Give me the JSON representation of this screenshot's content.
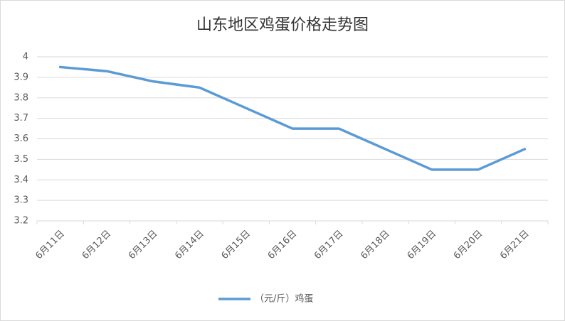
{
  "chart_data": {
    "type": "line",
    "title": "山东地区鸡蛋价格走势图",
    "categories": [
      "6月11日",
      "6月12日",
      "6月13日",
      "6月14日",
      "6月15日",
      "6月16日",
      "6月17日",
      "6月18日",
      "6月19日",
      "6月20日",
      "6月21日"
    ],
    "series": [
      {
        "name": "（元/斤）鸡蛋",
        "color": "#5b9bd5",
        "values": [
          3.95,
          3.93,
          3.88,
          3.85,
          3.75,
          3.65,
          3.65,
          3.55,
          3.45,
          3.45,
          3.55
        ]
      }
    ],
    "ylim": [
      3.2,
      4
    ],
    "yticks": [
      3.2,
      3.3,
      3.4,
      3.5,
      3.6,
      3.7,
      3.8,
      3.9,
      4
    ],
    "grid": true,
    "legend": "bottom"
  }
}
